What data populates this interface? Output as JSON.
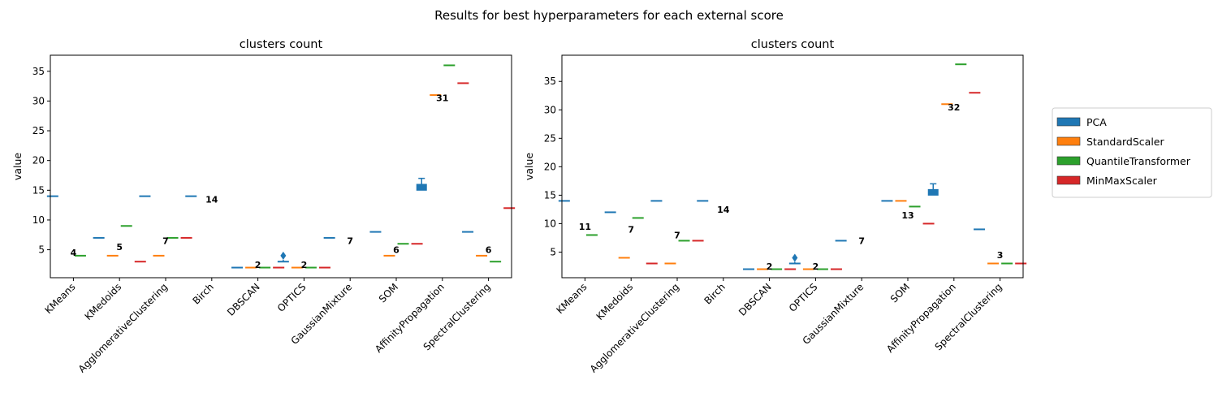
{
  "suptitle": "Results for best hyperparameters for each external score",
  "legend": {
    "placement": "right",
    "entries": [
      {
        "name": "PCA",
        "color": "#1f77b4"
      },
      {
        "name": "StandardScaler",
        "color": "#ff7f0e"
      },
      {
        "name": "QuantileTransformer",
        "color": "#2ca02c"
      },
      {
        "name": "MinMaxScaler",
        "color": "#d62728"
      }
    ]
  },
  "chart_data": [
    {
      "type": "box",
      "title": "clusters count",
      "xlabel": "",
      "ylabel": "value",
      "ylim": [
        0.3,
        37.7
      ],
      "yticks": [
        5,
        10,
        15,
        20,
        25,
        30,
        35
      ],
      "categories": [
        "KMeans",
        "KMedoids",
        "AgglomerativeClustering",
        "Birch",
        "DBSCAN",
        "OPTICS",
        "GaussianMixture",
        "SOM",
        "AffinityPropagation",
        "SpectralClustering"
      ],
      "series": [
        {
          "name": "PCA",
          "values": [
            14,
            7,
            14,
            14,
            2,
            3,
            7,
            8,
            15.5,
            8
          ],
          "box": [
            null,
            null,
            null,
            null,
            null,
            null,
            null,
            null,
            [
              15,
              16,
              17
            ],
            null
          ],
          "outliers": [
            [],
            [],
            [],
            [],
            [],
            [
              4
            ],
            [],
            [],
            [],
            []
          ]
        },
        {
          "name": "StandardScaler",
          "values": [
            null,
            4,
            4,
            null,
            2,
            2,
            null,
            4,
            31,
            4
          ]
        },
        {
          "name": "QuantileTransformer",
          "values": [
            4,
            9,
            7,
            null,
            2,
            2,
            null,
            6,
            36,
            3
          ]
        },
        {
          "name": "MinMaxScaler",
          "values": [
            null,
            3,
            7,
            null,
            2,
            2,
            null,
            6,
            33,
            12
          ]
        }
      ],
      "annotations": [
        {
          "category": "KMeans",
          "y": 4.5,
          "text": "4"
        },
        {
          "category": "KMedoids",
          "y": 5.5,
          "text": "5"
        },
        {
          "category": "AgglomerativeClustering",
          "y": 6.5,
          "text": "7"
        },
        {
          "category": "Birch",
          "y": 13.5,
          "text": "14"
        },
        {
          "category": "DBSCAN",
          "y": 2.5,
          "text": "2"
        },
        {
          "category": "OPTICS",
          "y": 2.5,
          "text": "2"
        },
        {
          "category": "GaussianMixture",
          "y": 6.5,
          "text": "7"
        },
        {
          "category": "SOM",
          "y": 5.0,
          "text": "6"
        },
        {
          "category": "AffinityPropagation",
          "y": 30.5,
          "text": "31"
        },
        {
          "category": "SpectralClustering",
          "y": 5.0,
          "text": "6"
        }
      ]
    },
    {
      "type": "box",
      "title": "clusters count",
      "xlabel": "",
      "ylabel": "value",
      "ylim": [
        0.5,
        39.6
      ],
      "yticks": [
        5,
        10,
        15,
        20,
        25,
        30,
        35
      ],
      "categories": [
        "KMeans",
        "KMedoids",
        "AgglomerativeClustering",
        "Birch",
        "DBSCAN",
        "OPTICS",
        "GaussianMixture",
        "SOM",
        "AffinityPropagation",
        "SpectralClustering"
      ],
      "series": [
        {
          "name": "PCA",
          "values": [
            14,
            12,
            14,
            14,
            2,
            3,
            7,
            14,
            15.5,
            9
          ],
          "box": [
            null,
            null,
            null,
            null,
            null,
            null,
            null,
            null,
            [
              15,
              16,
              17
            ],
            null
          ],
          "outliers": [
            [],
            [],
            [],
            [],
            [],
            [
              4
            ],
            [],
            [],
            [],
            []
          ]
        },
        {
          "name": "StandardScaler",
          "values": [
            null,
            4,
            3,
            null,
            2,
            2,
            null,
            14,
            31,
            3
          ]
        },
        {
          "name": "QuantileTransformer",
          "values": [
            8,
            11,
            7,
            null,
            2,
            2,
            null,
            13,
            38,
            3
          ]
        },
        {
          "name": "MinMaxScaler",
          "values": [
            null,
            3,
            7,
            null,
            2,
            2,
            null,
            10,
            33,
            3
          ]
        }
      ],
      "annotations": [
        {
          "category": "KMeans",
          "y": 9.5,
          "text": "11"
        },
        {
          "category": "KMedoids",
          "y": 9.0,
          "text": "7"
        },
        {
          "category": "AgglomerativeClustering",
          "y": 8.0,
          "text": "7"
        },
        {
          "category": "Birch",
          "y": 12.5,
          "text": "14"
        },
        {
          "category": "DBSCAN",
          "y": 2.5,
          "text": "2"
        },
        {
          "category": "OPTICS",
          "y": 2.5,
          "text": "2"
        },
        {
          "category": "GaussianMixture",
          "y": 7.0,
          "text": "7"
        },
        {
          "category": "SOM",
          "y": 11.5,
          "text": "13"
        },
        {
          "category": "AffinityPropagation",
          "y": 30.5,
          "text": "32"
        },
        {
          "category": "SpectralClustering",
          "y": 4.5,
          "text": "3"
        }
      ]
    }
  ]
}
